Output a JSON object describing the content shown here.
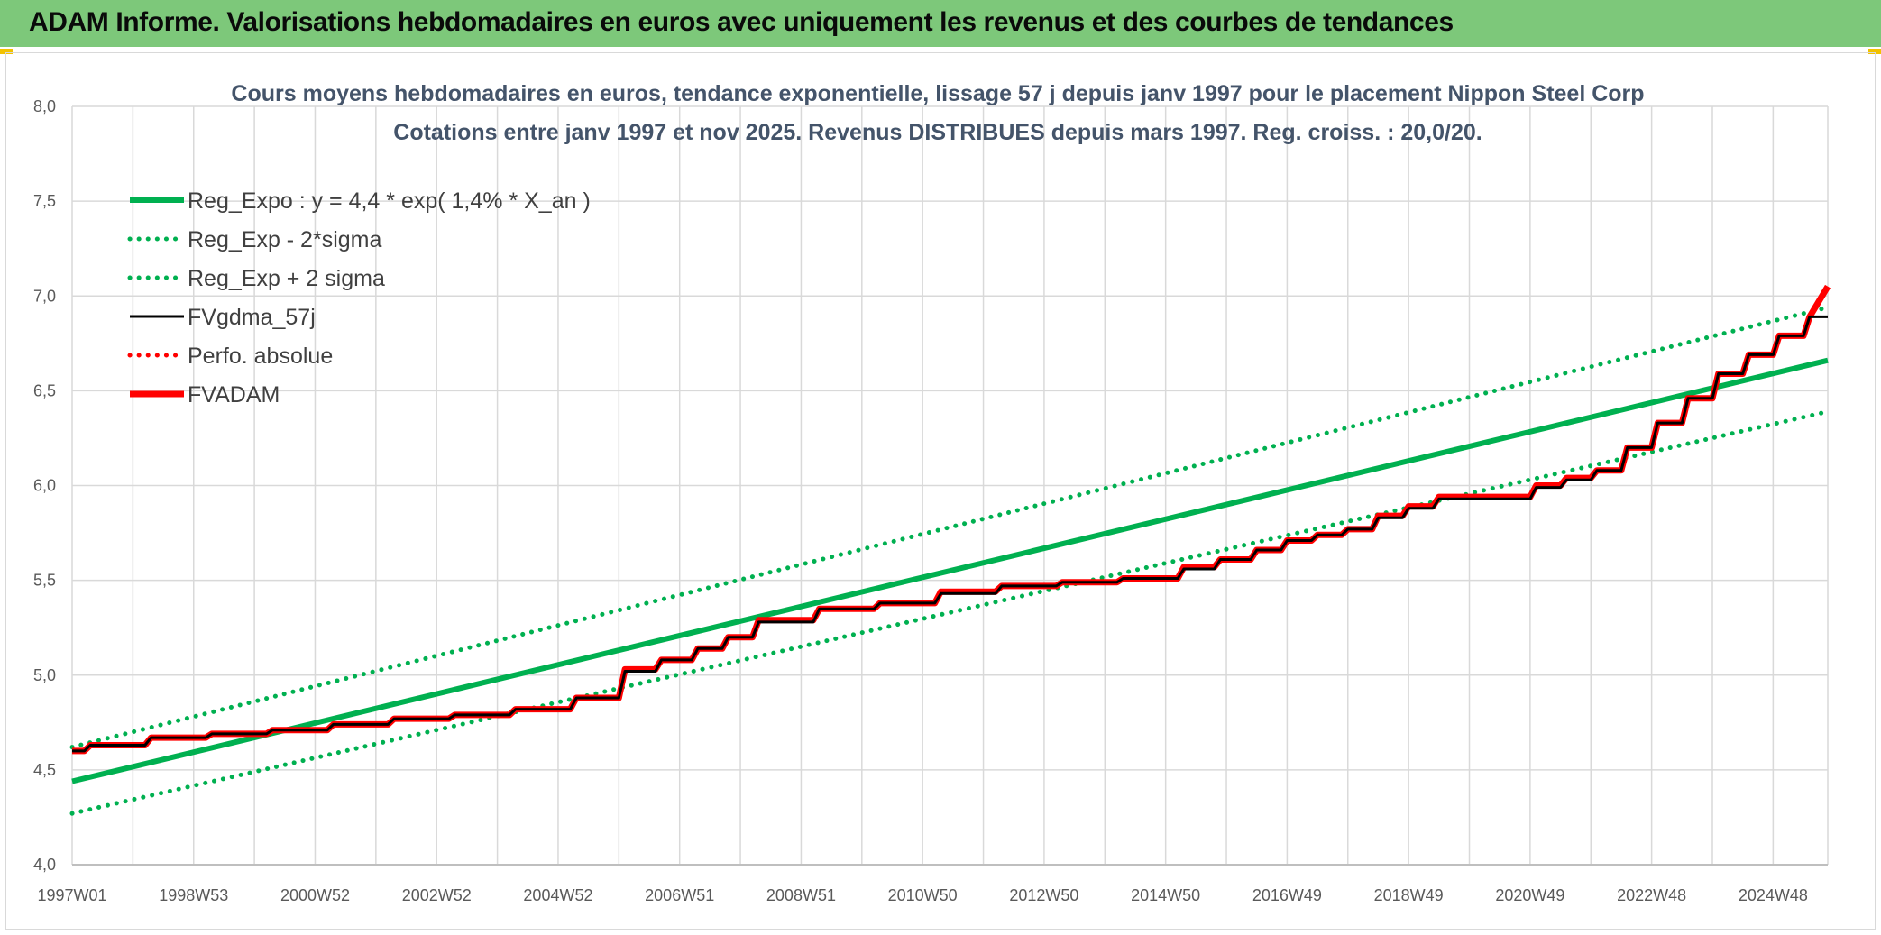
{
  "banner": {
    "title": "ADAM Informe. Valorisations hebdomadaires en euros avec uniquement les revenus et des courbes de tendances"
  },
  "colors": {
    "banner": "#7dc87a",
    "regression": "#00b050",
    "series_black": "#000000",
    "series_red": "#ff0000",
    "grid": "#d9d9d9"
  },
  "chart_data": {
    "type": "line",
    "title": "Cours moyens hebdomadaires en euros, tendance exponentielle, lissage 57 j depuis janv 1997 pour le placement Nippon Steel Corp",
    "subtitle": "Cotations entre janv 1997 et nov 2025. Revenus DISTRIBUES depuis mars 1997. Reg. croiss. : 20,0/20.",
    "xlabel": "",
    "ylabel": "",
    "ylim": [
      4.0,
      8.0
    ],
    "xlim": [
      1997.0,
      2025.9
    ],
    "y_ticks": [
      "4,0",
      "4,5",
      "5,0",
      "5,5",
      "6,0",
      "6,5",
      "7,0",
      "7,5",
      "8,0"
    ],
    "x_tick_labels": [
      "1997W01",
      "1998W53",
      "2000W52",
      "2002W52",
      "2004W52",
      "2006W51",
      "2008W51",
      "2010W50",
      "2012W50",
      "2014W50",
      "2016W49",
      "2018W49",
      "2020W49",
      "2022W48",
      "2024W48"
    ],
    "x_tick_years": [
      1997.0,
      1999.0,
      2001.0,
      2003.0,
      2005.0,
      2007.0,
      2009.0,
      2011.0,
      2013.0,
      2015.0,
      2017.0,
      2019.0,
      2021.0,
      2023.0,
      2025.0
    ],
    "grid": true,
    "legend_position": "top-left",
    "series": [
      {
        "name": "Reg_Expo : y = 4,4 * exp( 1,4% *  X_an )",
        "style": "solid",
        "color": "#00b050",
        "x": [
          1997.0,
          2025.9
        ],
        "y": [
          4.44,
          6.66
        ]
      },
      {
        "name": "Reg_Exp - 2*sigma",
        "style": "dotted",
        "color": "#00b050",
        "x": [
          1997.0,
          2025.9
        ],
        "y": [
          4.27,
          6.39
        ]
      },
      {
        "name": "Reg_Exp + 2 sigma",
        "style": "dotted",
        "color": "#00b050",
        "x": [
          1997.0,
          2025.9
        ],
        "y": [
          4.62,
          6.94
        ]
      },
      {
        "name": "FVgdma_57j",
        "style": "solid-thin",
        "color": "#000000",
        "x": [
          1997.0,
          1997.2,
          1997.3,
          1998.2,
          1998.3,
          1999.2,
          1999.3,
          2000.2,
          2000.3,
          2001.2,
          2001.3,
          2002.2,
          2002.3,
          2003.2,
          2003.3,
          2004.2,
          2004.3,
          2005.2,
          2005.3,
          2006.0,
          2006.1,
          2006.6,
          2006.7,
          2007.2,
          2007.3,
          2007.7,
          2007.8,
          2008.2,
          2008.3,
          2009.2,
          2009.3,
          2010.2,
          2010.3,
          2011.2,
          2011.3,
          2012.2,
          2012.3,
          2013.2,
          2013.3,
          2014.2,
          2014.3,
          2015.2,
          2015.3,
          2015.8,
          2015.9,
          2016.4,
          2016.5,
          2016.9,
          2017.0,
          2017.4,
          2017.5,
          2017.9,
          2018.0,
          2018.4,
          2018.5,
          2018.9,
          2019.0,
          2019.4,
          2019.5,
          2021.0,
          2021.1,
          2021.5,
          2021.6,
          2022.0,
          2022.1,
          2022.5,
          2022.6,
          2023.0,
          2023.1,
          2023.5,
          2023.6,
          2024.0,
          2024.1,
          2024.5,
          2024.6,
          2025.0,
          2025.1,
          2025.5,
          2025.6,
          2025.9
        ],
        "y": [
          4.6,
          4.6,
          4.63,
          4.63,
          4.67,
          4.67,
          4.69,
          4.69,
          4.71,
          4.71,
          4.74,
          4.74,
          4.77,
          4.77,
          4.79,
          4.79,
          4.82,
          4.82,
          4.88,
          4.88,
          5.02,
          5.02,
          5.08,
          5.08,
          5.14,
          5.14,
          5.2,
          5.2,
          5.28,
          5.28,
          5.35,
          5.35,
          5.38,
          5.38,
          5.43,
          5.43,
          5.47,
          5.47,
          5.49,
          5.49,
          5.51,
          5.51,
          5.56,
          5.56,
          5.61,
          5.61,
          5.66,
          5.66,
          5.71,
          5.71,
          5.74,
          5.74,
          5.77,
          5.77,
          5.83,
          5.83,
          5.88,
          5.88,
          5.93,
          5.93,
          5.99,
          5.99,
          6.03,
          6.03,
          6.08,
          6.08,
          6.2,
          6.2,
          6.33,
          6.33,
          6.46,
          6.46,
          6.59,
          6.59,
          6.69,
          6.69,
          6.79,
          6.79,
          6.89,
          6.89
        ]
      },
      {
        "name": "Perfo. absolue",
        "style": "dotted",
        "color": "#ff0000",
        "x": [],
        "y": []
      },
      {
        "name": "FVADAM",
        "style": "solid-thick",
        "color": "#ff0000",
        "x": [
          1997.0,
          1997.2,
          1997.3,
          1998.2,
          1998.3,
          1999.2,
          1999.3,
          2000.2,
          2000.3,
          2001.2,
          2001.3,
          2002.2,
          2002.3,
          2003.2,
          2003.3,
          2004.2,
          2004.3,
          2005.2,
          2005.3,
          2006.0,
          2006.1,
          2006.6,
          2006.7,
          2007.2,
          2007.3,
          2007.7,
          2007.8,
          2008.2,
          2008.3,
          2009.2,
          2009.3,
          2010.2,
          2010.3,
          2011.2,
          2011.3,
          2012.2,
          2012.3,
          2013.2,
          2013.3,
          2014.2,
          2014.3,
          2015.2,
          2015.3,
          2015.8,
          2015.9,
          2016.4,
          2016.5,
          2016.9,
          2017.0,
          2017.4,
          2017.5,
          2017.9,
          2018.0,
          2018.4,
          2018.5,
          2018.9,
          2019.0,
          2019.4,
          2019.5,
          2021.0,
          2021.1,
          2021.5,
          2021.6,
          2022.0,
          2022.1,
          2022.5,
          2022.6,
          2023.0,
          2023.1,
          2023.5,
          2023.6,
          2024.0,
          2024.1,
          2024.5,
          2024.6,
          2025.0,
          2025.1,
          2025.5,
          2025.6,
          2025.9
        ],
        "y": [
          4.6,
          4.6,
          4.63,
          4.63,
          4.67,
          4.67,
          4.69,
          4.69,
          4.71,
          4.71,
          4.74,
          4.74,
          4.77,
          4.77,
          4.79,
          4.79,
          4.82,
          4.82,
          4.88,
          4.88,
          5.03,
          5.03,
          5.08,
          5.08,
          5.14,
          5.14,
          5.2,
          5.2,
          5.29,
          5.29,
          5.35,
          5.35,
          5.38,
          5.38,
          5.44,
          5.44,
          5.47,
          5.47,
          5.49,
          5.49,
          5.51,
          5.51,
          5.57,
          5.57,
          5.61,
          5.61,
          5.66,
          5.66,
          5.71,
          5.71,
          5.74,
          5.74,
          5.77,
          5.77,
          5.84,
          5.84,
          5.89,
          5.89,
          5.94,
          5.94,
          6.0,
          6.0,
          6.04,
          6.04,
          6.08,
          6.08,
          6.2,
          6.2,
          6.33,
          6.33,
          6.46,
          6.46,
          6.59,
          6.59,
          6.69,
          6.69,
          6.79,
          6.79,
          6.89,
          7.05
        ]
      }
    ]
  }
}
